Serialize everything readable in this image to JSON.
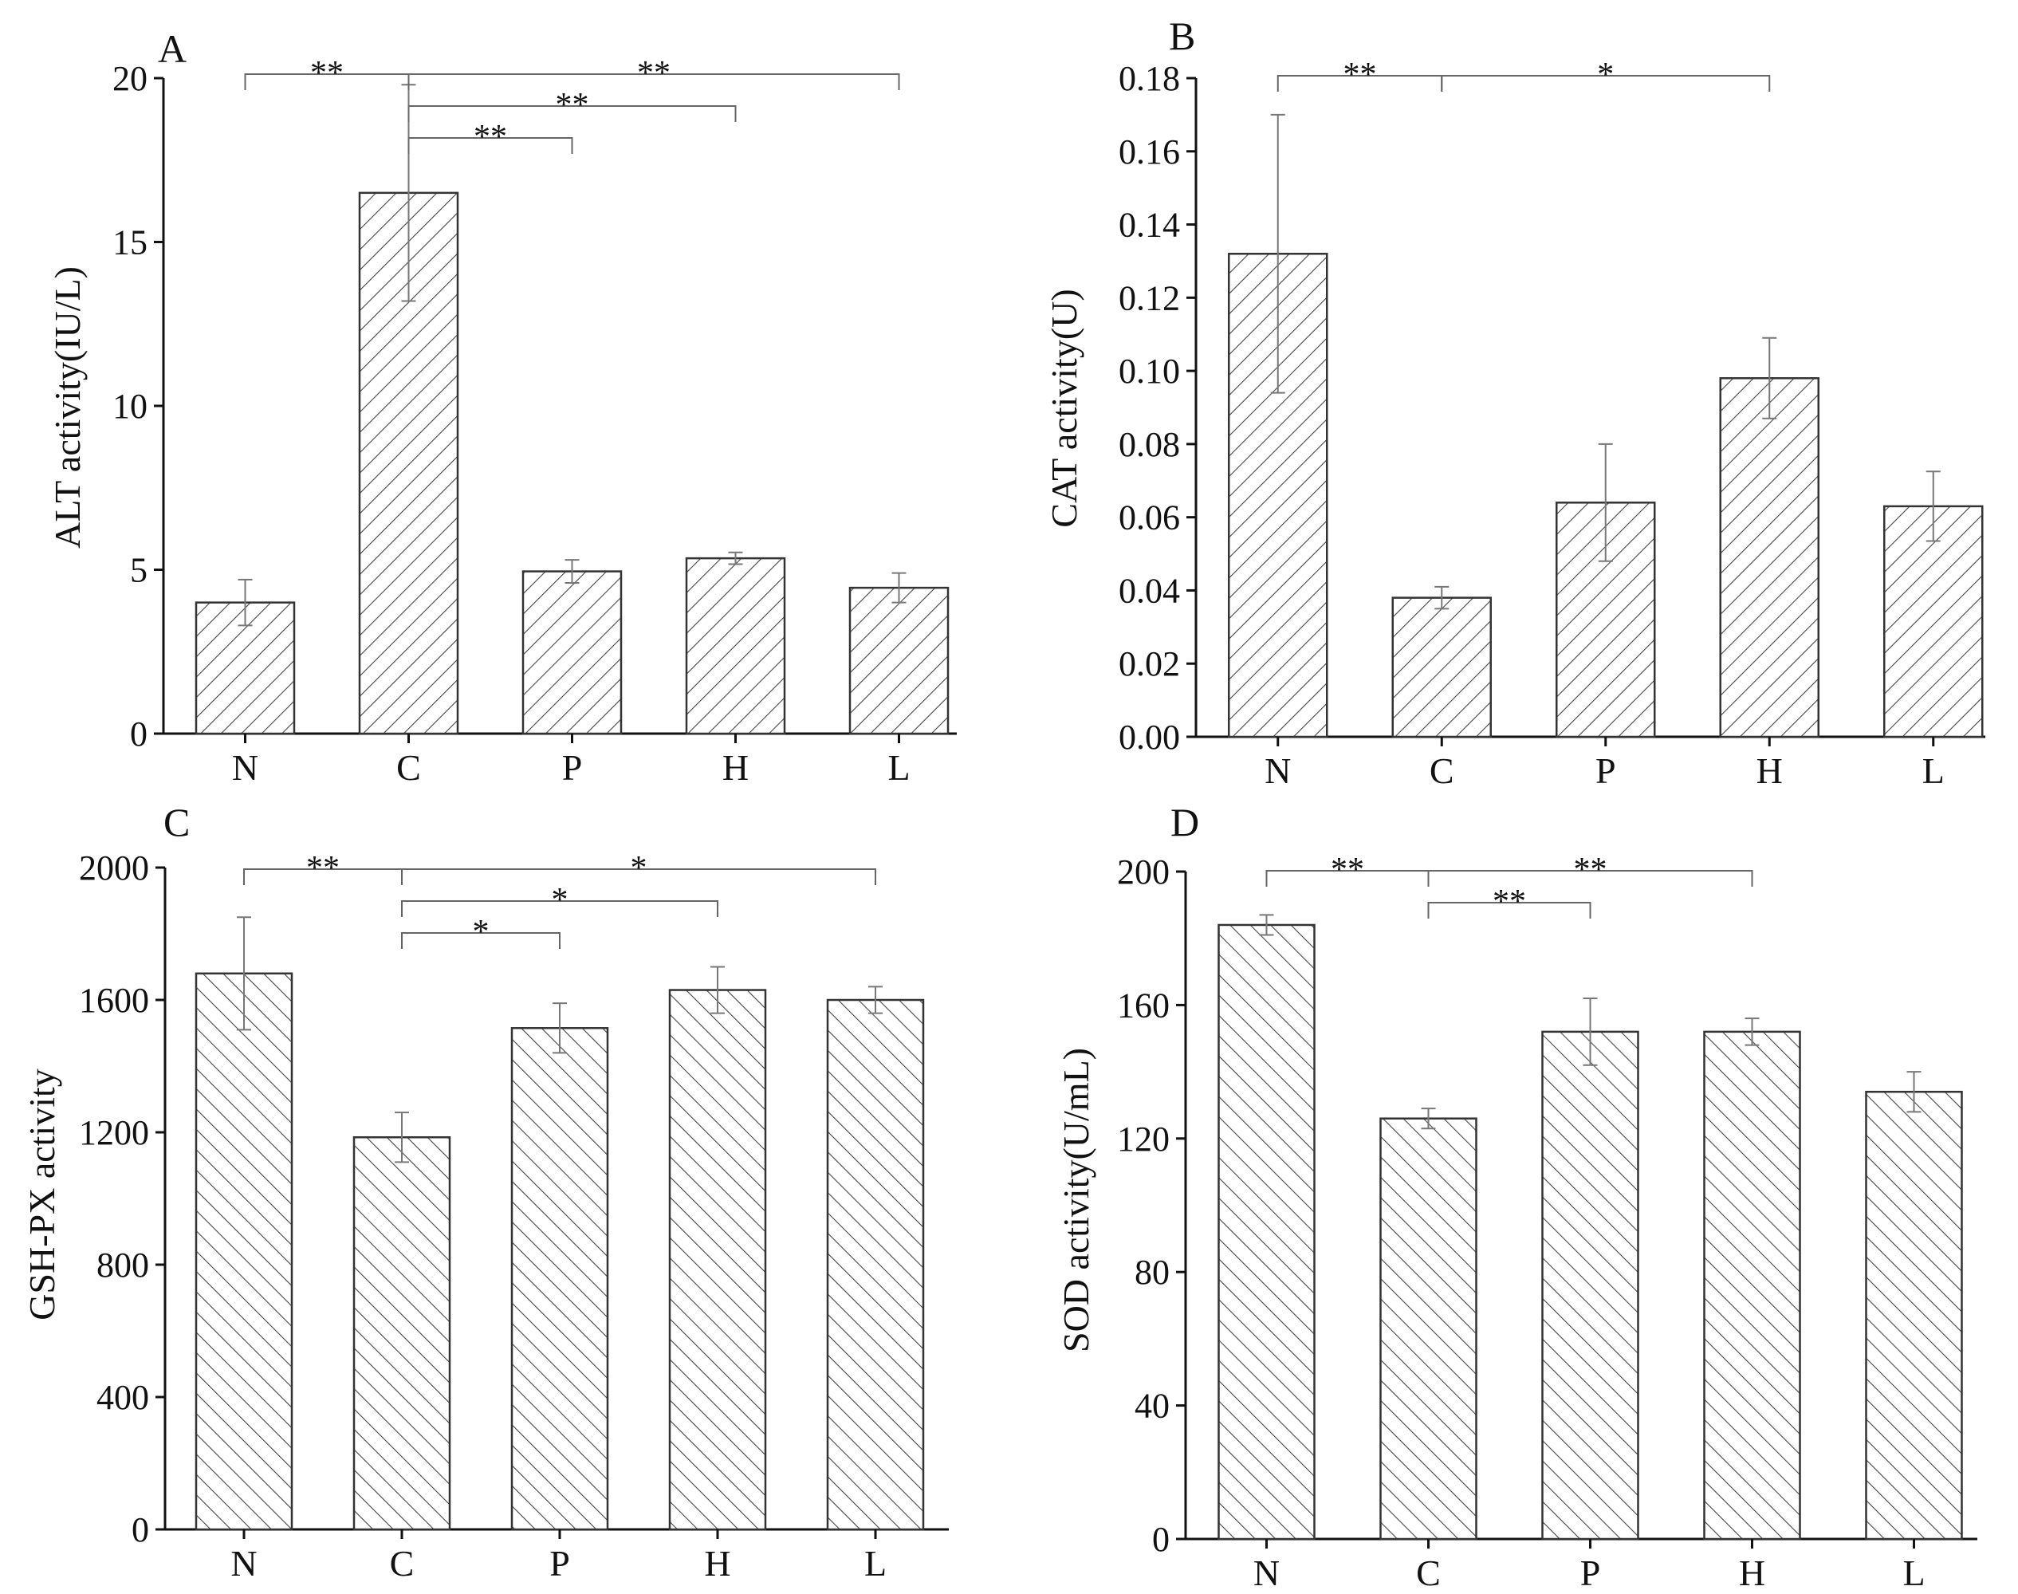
{
  "figure": {
    "colors": {
      "axis": "#111111",
      "bar_stroke": "#333333",
      "hatch": "#444444",
      "error_bar": "#777777",
      "bracket": "#666666",
      "background": "#ffffff"
    }
  },
  "chart_data": [
    {
      "type": "bar",
      "panel": "A",
      "categories": [
        "N",
        "C",
        "P",
        "H",
        "L"
      ],
      "values": [
        4.0,
        16.5,
        4.95,
        5.35,
        4.45
      ],
      "errors": [
        0.7,
        3.3,
        0.35,
        0.18,
        0.45
      ],
      "ylabel": "ALT activity(IU/L)",
      "xlabel": "",
      "ylim": [
        0,
        20
      ],
      "yticks": [
        0,
        5,
        10,
        15,
        20
      ],
      "ytick_labels": [
        "0",
        "5",
        "10",
        "15",
        "20"
      ],
      "hatch": "forward",
      "significance": [
        {
          "from": "N",
          "to": "C",
          "label": "**",
          "level": 0
        },
        {
          "from": "C",
          "to": "L",
          "label": "**",
          "level": 0
        },
        {
          "from": "C",
          "to": "H",
          "label": "**",
          "level": 1
        },
        {
          "from": "C",
          "to": "P",
          "label": "**",
          "level": 2
        }
      ]
    },
    {
      "type": "bar",
      "panel": "B",
      "categories": [
        "N",
        "C",
        "P",
        "H",
        "L"
      ],
      "values": [
        0.132,
        0.038,
        0.064,
        0.098,
        0.063
      ],
      "errors": [
        0.038,
        0.003,
        0.016,
        0.011,
        0.0095
      ],
      "ylabel": "CAT activity(U)",
      "xlabel": "",
      "ylim": [
        0,
        0.18
      ],
      "yticks": [
        0,
        0.02,
        0.04,
        0.06,
        0.08,
        0.1,
        0.12,
        0.14,
        0.16,
        0.18
      ],
      "ytick_labels": [
        "0.00",
        "0.02",
        "0.04",
        "0.06",
        "0.08",
        "0.10",
        "0.12",
        "0.14",
        "0.16",
        "0.18"
      ],
      "hatch": "forward",
      "significance": [
        {
          "from": "N",
          "to": "C",
          "label": "**",
          "level": 0
        },
        {
          "from": "C",
          "to": "H",
          "label": "*",
          "level": 0
        }
      ]
    },
    {
      "type": "bar",
      "panel": "C",
      "categories": [
        "N",
        "C",
        "P",
        "H",
        "L"
      ],
      "values": [
        1680,
        1185,
        1515,
        1630,
        1600
      ],
      "errors": [
        170,
        75,
        75,
        70,
        40
      ],
      "ylabel": "GSH-PX activity",
      "xlabel": "",
      "ylim": [
        0,
        2000
      ],
      "yticks": [
        0,
        400,
        800,
        1200,
        1600,
        2000
      ],
      "ytick_labels": [
        "0",
        "400",
        "800",
        "1200",
        "1600",
        "2000"
      ],
      "hatch": "back",
      "significance": [
        {
          "from": "N",
          "to": "C",
          "label": "**",
          "level": 0
        },
        {
          "from": "C",
          "to": "L",
          "label": "*",
          "level": 0
        },
        {
          "from": "C",
          "to": "H",
          "label": "*",
          "level": 1
        },
        {
          "from": "C",
          "to": "P",
          "label": "*",
          "level": 2
        }
      ]
    },
    {
      "type": "bar",
      "panel": "D",
      "categories": [
        "N",
        "C",
        "P",
        "H",
        "L"
      ],
      "values": [
        184,
        126,
        152,
        152,
        134
      ],
      "errors": [
        3,
        3,
        10,
        4,
        6
      ],
      "ylabel": "SOD activity(U/mL)",
      "xlabel": "",
      "ylim": [
        0,
        200
      ],
      "yticks": [
        0,
        40,
        80,
        120,
        160,
        200
      ],
      "ytick_labels": [
        "0",
        "40",
        "80",
        "120",
        "160",
        "200"
      ],
      "hatch": "back",
      "significance": [
        {
          "from": "N",
          "to": "C",
          "label": "**",
          "level": 0
        },
        {
          "from": "C",
          "to": "H",
          "label": "**",
          "level": 0
        },
        {
          "from": "C",
          "to": "P",
          "label": "**",
          "level": 1
        }
      ]
    }
  ]
}
